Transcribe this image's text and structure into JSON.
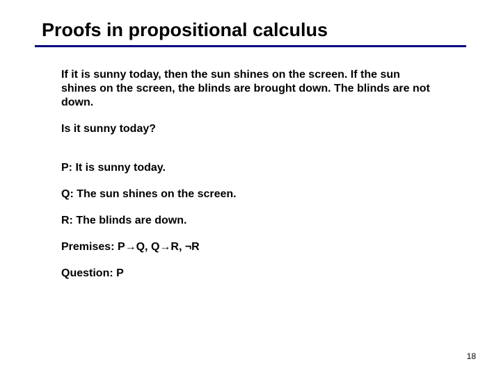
{
  "title": "Proofs in propositional calculus",
  "colors": {
    "rule": "#000080",
    "background": "#ffffff",
    "text": "#000000"
  },
  "typography": {
    "title_fontsize": 27,
    "body_fontsize": 16,
    "all_bold": true,
    "font_family": "Arial"
  },
  "paragraphs": {
    "premise_text": "If it is sunny today, then the sun shines on the screen. If the sun shines on the screen, the blinds are brought down. The blinds are not down.",
    "question_text": "Is it sunny today?",
    "p_def": "P: It is sunny today.",
    "q_def": "Q: The sun shines on the screen.",
    "r_def": "R: The blinds are down.",
    "premises_formal": "Premises: P→Q, Q→R, ¬R",
    "question_formal": "Question: P"
  },
  "page_number": "18"
}
